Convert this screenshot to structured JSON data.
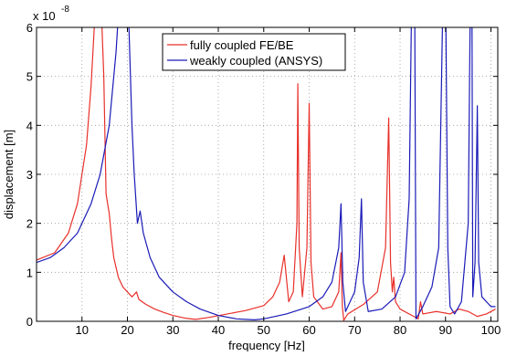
{
  "chart_data": {
    "type": "line",
    "x_label": "frequency [Hz]",
    "y_label": "displacement [m]",
    "y_scale_label": "x 10",
    "y_scale_exponent": "-8",
    "xlim": [
      0,
      101.5
    ],
    "ylim": [
      0,
      6
    ],
    "xticks": [
      10,
      20,
      30,
      40,
      50,
      60,
      70,
      80,
      90,
      100
    ],
    "yticks": [
      0,
      1,
      2,
      3,
      4,
      5,
      6
    ],
    "grid": true,
    "legend_position": "top",
    "series": [
      {
        "name": "fully coupled FE/BE",
        "color": "#e8302a",
        "x": [
          0,
          4,
          7,
          9,
          11,
          12,
          13,
          14,
          14.8,
          15.3,
          16,
          16.5,
          17,
          18,
          19,
          20,
          21,
          22,
          22.5,
          24,
          26,
          28,
          30,
          33,
          35,
          38,
          42,
          46,
          50,
          52,
          53.5,
          54.5,
          55.5,
          56.5,
          57.3,
          57.5,
          57.8,
          58.5,
          59.5,
          60,
          60.4,
          61,
          63,
          65,
          66.5,
          67,
          67.3,
          67.6,
          68.5,
          72,
          75,
          76.8,
          77.5,
          77.9,
          78.3,
          78.6,
          79,
          80,
          83,
          84,
          84.5,
          85,
          88,
          91,
          93,
          95,
          97,
          99,
          101
        ],
        "values": [
          1.25,
          1.4,
          1.8,
          2.4,
          3.6,
          4.8,
          6.5,
          7,
          5,
          2.6,
          2.2,
          1.7,
          1.3,
          0.9,
          0.7,
          0.6,
          0.5,
          0.6,
          0.45,
          0.35,
          0.25,
          0.18,
          0.12,
          0.06,
          0.04,
          0.08,
          0.15,
          0.22,
          0.32,
          0.5,
          0.8,
          1.35,
          0.4,
          0.6,
          2,
          4.85,
          1.5,
          0.5,
          1.5,
          4.45,
          1.2,
          0.5,
          0.25,
          0.3,
          0.6,
          1.4,
          0.3,
          0.02,
          0.15,
          0.35,
          0.6,
          1.5,
          4.15,
          1.2,
          0.6,
          0.9,
          0.4,
          0.25,
          0.1,
          0.05,
          0.4,
          0.15,
          0.2,
          0.15,
          0.25,
          0.2,
          0.1,
          0.15,
          0.25
        ]
      },
      {
        "name": "weakly coupled (ANSYS)",
        "color": "#1a1ab8",
        "x": [
          0,
          3,
          6,
          9,
          12,
          14,
          16,
          17.5,
          18.5,
          20,
          20.5,
          21,
          21.5,
          22.2,
          22.8,
          23.5,
          25,
          27,
          30,
          33,
          36,
          40,
          44,
          48,
          50,
          55,
          60,
          63,
          65,
          66.5,
          67,
          67.4,
          68,
          70,
          71,
          71.5,
          71.9,
          73,
          76,
          79,
          81,
          82,
          82.6,
          83.2,
          83.5,
          85,
          87,
          88.5,
          89.5,
          90,
          90.5,
          91,
          92,
          93.5,
          95,
          95.5,
          95.8,
          96,
          96.5,
          97,
          97.3,
          98,
          100,
          101
        ],
        "values": [
          1.2,
          1.3,
          1.5,
          1.8,
          2.4,
          3.0,
          4.0,
          5.5,
          7,
          7,
          5.5,
          4,
          3,
          2.0,
          2.25,
          1.8,
          1.3,
          0.9,
          0.6,
          0.4,
          0.25,
          0.12,
          0.05,
          0.03,
          0.05,
          0.15,
          0.3,
          0.5,
          0.8,
          1.5,
          2.4,
          0.8,
          0.2,
          0.6,
          1.3,
          2.5,
          0.8,
          0.2,
          0.25,
          0.5,
          1,
          2.5,
          7,
          7,
          0.05,
          0.3,
          0.7,
          1.5,
          7,
          7,
          1.5,
          0.3,
          0.15,
          0.4,
          2,
          7,
          7,
          0.5,
          1.2,
          4.4,
          1.2,
          0.5,
          0.3,
          0.3
        ]
      }
    ]
  }
}
